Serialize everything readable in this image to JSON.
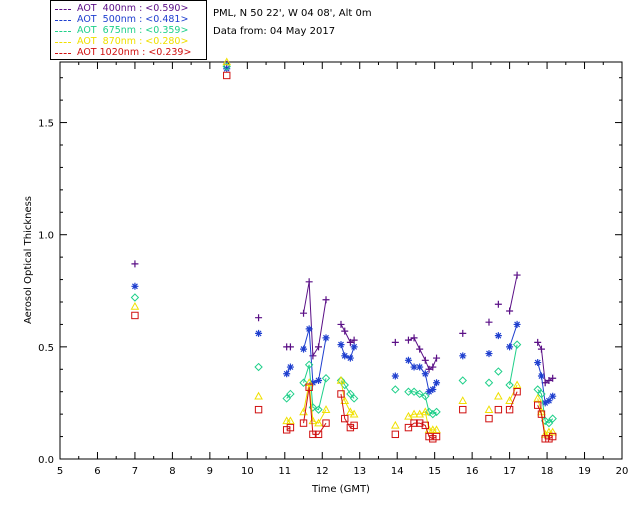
{
  "site_info": {
    "line1": "PML, N 50 22', W 04 08', Alt 0m",
    "line2": "Data from: 04 May 2017"
  },
  "legend": [
    {
      "label": "AOT  400nm : <0.590>",
      "color": "#5a0f86"
    },
    {
      "label": "AOT  500nm : <0.481>",
      "color": "#1f3fcf"
    },
    {
      "label": "AOT  675nm : <0.359>",
      "color": "#20d08a"
    },
    {
      "label": "AOT  870nm : <0.280>",
      "color": "#f0e000"
    },
    {
      "label": "AOT 1020nm : <0.239>",
      "color": "#d01010"
    }
  ],
  "chart_data": {
    "type": "scatter",
    "xlabel": "Time (GMT)",
    "ylabel": "Aerosol Optical Thickness",
    "xlim": [
      5,
      20
    ],
    "ylim": [
      0,
      1.77
    ],
    "xticks": [
      "5",
      "6",
      "7",
      "8",
      "9",
      "10",
      "11",
      "12",
      "13",
      "14",
      "15",
      "16",
      "17",
      "18",
      "19",
      "20"
    ],
    "yticks": [
      "0.0",
      "0.5",
      "1.0",
      "1.5"
    ],
    "series": [
      {
        "name": "AOT 400nm",
        "marker": "plus",
        "color": "#5a0f86",
        "segments": [
          [
            [
              7.0,
              0.87
            ]
          ],
          [
            [
              9.45,
              1.76
            ]
          ],
          [
            [
              10.3,
              0.63
            ]
          ],
          [
            [
              11.05,
              0.5
            ],
            [
              11.15,
              0.5
            ]
          ],
          [
            [
              11.5,
              0.65
            ],
            [
              11.65,
              0.79
            ],
            [
              11.75,
              0.46
            ],
            [
              11.9,
              0.5
            ],
            [
              12.1,
              0.71
            ]
          ],
          [
            [
              12.5,
              0.6
            ],
            [
              12.6,
              0.57
            ],
            [
              12.75,
              0.52
            ],
            [
              12.85,
              0.53
            ]
          ],
          [
            [
              13.95,
              0.52
            ]
          ],
          [
            [
              14.3,
              0.53
            ],
            [
              14.45,
              0.54
            ],
            [
              14.6,
              0.49
            ],
            [
              14.75,
              0.44
            ],
            [
              14.85,
              0.4
            ],
            [
              14.95,
              0.41
            ],
            [
              15.05,
              0.45
            ]
          ],
          [
            [
              15.75,
              0.56
            ]
          ],
          [
            [
              16.45,
              0.61
            ]
          ],
          [
            [
              16.7,
              0.69
            ]
          ],
          [
            [
              17.0,
              0.66
            ],
            [
              17.2,
              0.82
            ]
          ],
          [
            [
              17.75,
              0.52
            ],
            [
              17.85,
              0.49
            ],
            [
              17.95,
              0.34
            ],
            [
              18.05,
              0.35
            ],
            [
              18.15,
              0.36
            ]
          ]
        ]
      },
      {
        "name": "AOT 500nm",
        "marker": "asterisk",
        "color": "#1f3fcf",
        "segments": [
          [
            [
              7.0,
              0.77
            ]
          ],
          [
            [
              9.45,
              1.74
            ]
          ],
          [
            [
              10.3,
              0.56
            ]
          ],
          [
            [
              11.05,
              0.38
            ],
            [
              11.15,
              0.41
            ]
          ],
          [
            [
              11.5,
              0.49
            ],
            [
              11.65,
              0.58
            ],
            [
              11.75,
              0.34
            ],
            [
              11.9,
              0.35
            ],
            [
              12.1,
              0.54
            ]
          ],
          [
            [
              12.5,
              0.51
            ],
            [
              12.6,
              0.46
            ],
            [
              12.75,
              0.45
            ],
            [
              12.85,
              0.5
            ]
          ],
          [
            [
              13.95,
              0.37
            ]
          ],
          [
            [
              14.3,
              0.44
            ],
            [
              14.45,
              0.41
            ],
            [
              14.6,
              0.41
            ],
            [
              14.75,
              0.38
            ],
            [
              14.85,
              0.3
            ],
            [
              14.95,
              0.31
            ],
            [
              15.05,
              0.34
            ]
          ],
          [
            [
              15.75,
              0.46
            ]
          ],
          [
            [
              16.45,
              0.47
            ]
          ],
          [
            [
              16.7,
              0.55
            ]
          ],
          [
            [
              17.0,
              0.5
            ],
            [
              17.2,
              0.6
            ]
          ],
          [
            [
              17.75,
              0.43
            ],
            [
              17.85,
              0.37
            ],
            [
              17.95,
              0.25
            ],
            [
              18.05,
              0.26
            ],
            [
              18.15,
              0.28
            ]
          ]
        ]
      },
      {
        "name": "AOT 675nm",
        "marker": "diamond",
        "color": "#20d08a",
        "segments": [
          [
            [
              7.0,
              0.72
            ]
          ],
          [
            [
              9.45,
              1.75
            ]
          ],
          [
            [
              10.3,
              0.41
            ]
          ],
          [
            [
              11.05,
              0.27
            ],
            [
              11.15,
              0.29
            ]
          ],
          [
            [
              11.5,
              0.34
            ],
            [
              11.65,
              0.42
            ],
            [
              11.75,
              0.23
            ],
            [
              11.9,
              0.22
            ],
            [
              12.1,
              0.36
            ]
          ],
          [
            [
              12.5,
              0.35
            ],
            [
              12.6,
              0.33
            ],
            [
              12.75,
              0.29
            ],
            [
              12.85,
              0.27
            ]
          ],
          [
            [
              13.95,
              0.31
            ]
          ],
          [
            [
              14.3,
              0.3
            ],
            [
              14.45,
              0.3
            ],
            [
              14.6,
              0.29
            ],
            [
              14.75,
              0.28
            ],
            [
              14.85,
              0.21
            ],
            [
              14.95,
              0.2
            ],
            [
              15.05,
              0.21
            ]
          ],
          [
            [
              15.75,
              0.35
            ]
          ],
          [
            [
              16.45,
              0.34
            ]
          ],
          [
            [
              16.7,
              0.39
            ]
          ],
          [
            [
              17.0,
              0.33
            ],
            [
              17.2,
              0.51
            ]
          ],
          [
            [
              17.75,
              0.31
            ],
            [
              17.85,
              0.29
            ],
            [
              17.95,
              0.17
            ],
            [
              18.05,
              0.16
            ],
            [
              18.15,
              0.18
            ]
          ]
        ]
      },
      {
        "name": "AOT 870nm",
        "marker": "triangle",
        "color": "#f0e000",
        "segments": [
          [
            [
              7.0,
              0.68
            ]
          ],
          [
            [
              9.45,
              1.77
            ]
          ],
          [
            [
              10.3,
              0.28
            ]
          ],
          [
            [
              11.05,
              0.17
            ],
            [
              11.15,
              0.17
            ]
          ],
          [
            [
              11.5,
              0.21
            ],
            [
              11.65,
              0.34
            ],
            [
              11.75,
              0.17
            ],
            [
              11.9,
              0.16
            ],
            [
              12.1,
              0.22
            ]
          ],
          [
            [
              12.5,
              0.35
            ],
            [
              12.6,
              0.26
            ],
            [
              12.75,
              0.21
            ],
            [
              12.85,
              0.2
            ]
          ],
          [
            [
              13.95,
              0.15
            ]
          ],
          [
            [
              14.3,
              0.19
            ],
            [
              14.45,
              0.2
            ],
            [
              14.6,
              0.2
            ],
            [
              14.75,
              0.21
            ],
            [
              14.85,
              0.13
            ],
            [
              14.95,
              0.13
            ],
            [
              15.05,
              0.13
            ]
          ],
          [
            [
              15.75,
              0.26
            ]
          ],
          [
            [
              16.45,
              0.22
            ]
          ],
          [
            [
              16.7,
              0.28
            ]
          ],
          [
            [
              17.0,
              0.26
            ],
            [
              17.2,
              0.33
            ]
          ],
          [
            [
              17.75,
              0.27
            ],
            [
              17.85,
              0.21
            ],
            [
              17.95,
              0.11
            ],
            [
              18.05,
              0.12
            ],
            [
              18.15,
              0.12
            ]
          ]
        ]
      },
      {
        "name": "AOT 1020nm",
        "marker": "square",
        "color": "#d01010",
        "segments": [
          [
            [
              7.0,
              0.64
            ]
          ],
          [
            [
              9.45,
              1.71
            ]
          ],
          [
            [
              10.3,
              0.22
            ]
          ],
          [
            [
              11.05,
              0.13
            ],
            [
              11.15,
              0.14
            ]
          ],
          [
            [
              11.5,
              0.16
            ],
            [
              11.65,
              0.32
            ],
            [
              11.75,
              0.11
            ],
            [
              11.9,
              0.11
            ],
            [
              12.1,
              0.16
            ]
          ],
          [
            [
              12.5,
              0.29
            ],
            [
              12.6,
              0.18
            ],
            [
              12.75,
              0.14
            ],
            [
              12.85,
              0.15
            ]
          ],
          [
            [
              13.95,
              0.11
            ]
          ],
          [
            [
              14.3,
              0.14
            ],
            [
              14.45,
              0.16
            ],
            [
              14.6,
              0.16
            ],
            [
              14.75,
              0.15
            ],
            [
              14.85,
              0.1
            ],
            [
              14.95,
              0.09
            ],
            [
              15.05,
              0.1
            ]
          ],
          [
            [
              15.75,
              0.22
            ]
          ],
          [
            [
              16.45,
              0.18
            ]
          ],
          [
            [
              16.7,
              0.22
            ]
          ],
          [
            [
              17.0,
              0.22
            ],
            [
              17.2,
              0.3
            ]
          ],
          [
            [
              17.75,
              0.24
            ],
            [
              17.85,
              0.2
            ],
            [
              17.95,
              0.09
            ],
            [
              18.05,
              0.09
            ],
            [
              18.15,
              0.1
            ]
          ]
        ]
      }
    ]
  }
}
